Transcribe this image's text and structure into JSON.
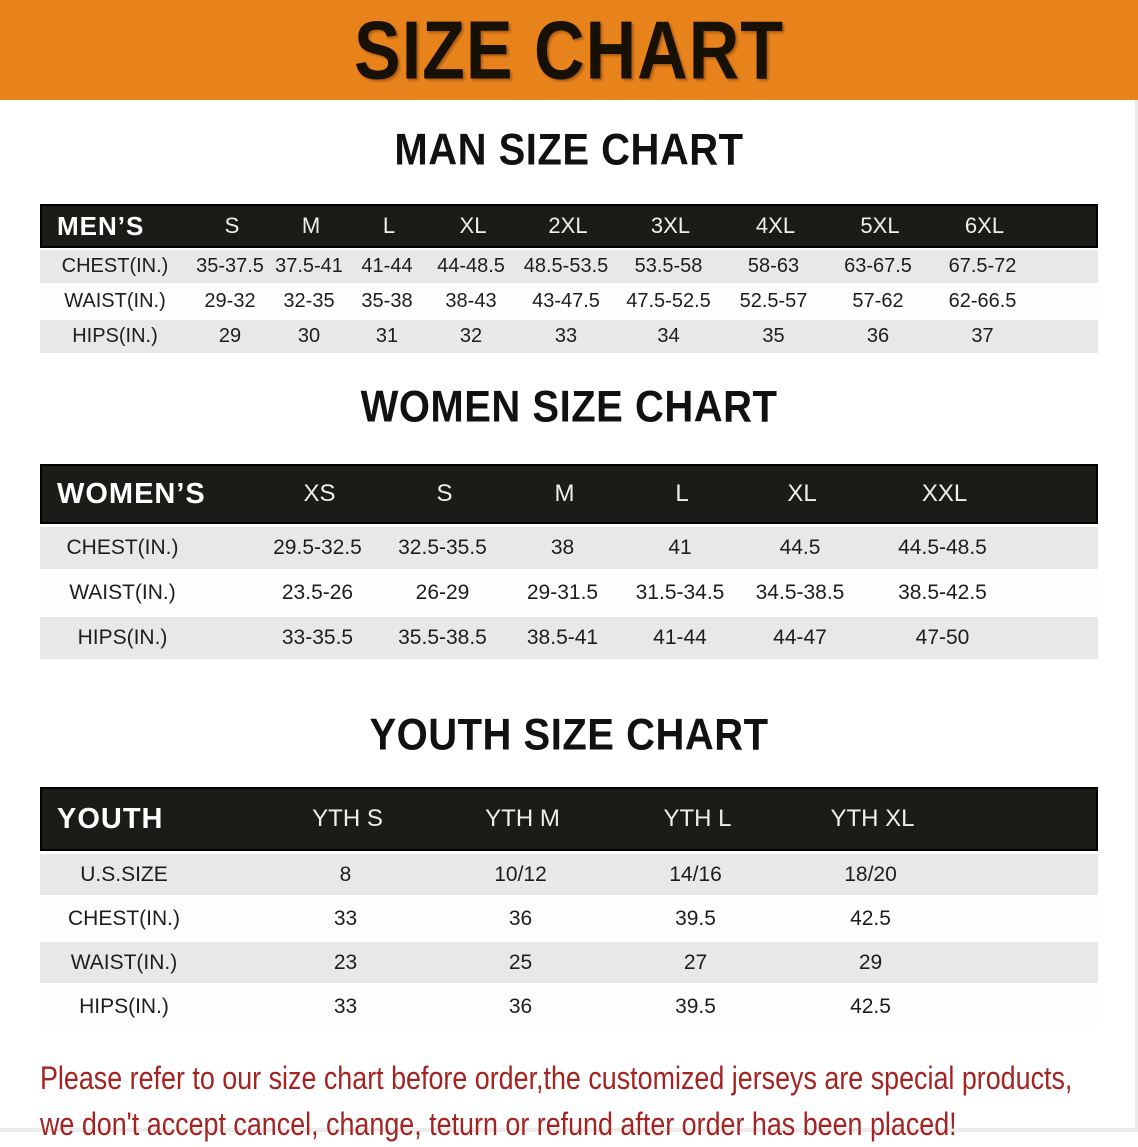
{
  "banner": {
    "title": "SIZE CHART",
    "bg_color": "#E8831C",
    "text_color": "#161005"
  },
  "tables": [
    {
      "id": "mens",
      "heading": "MAN SIZE CHART",
      "header_label": "MEN’S",
      "sizes": [
        "S",
        "M",
        "L",
        "XL",
        "2XL",
        "3XL",
        "4XL",
        "5XL",
        "6XL"
      ],
      "rows": [
        {
          "label": "CHEST(IN.)",
          "values": [
            "35-37.5",
            "37.5-41",
            "41-44",
            "44-48.5",
            "48.5-53.5",
            "53.5-58",
            "58-63",
            "63-67.5",
            "67.5-72"
          ]
        },
        {
          "label": "WAIST(IN.)",
          "values": [
            "29-32",
            "32-35",
            "35-38",
            "38-43",
            "43-47.5",
            "47.5-52.5",
            "52.5-57",
            "57-62",
            "62-66.5"
          ]
        },
        {
          "label": "HIPS(IN.)",
          "values": [
            "29",
            "30",
            "31",
            "32",
            "33",
            "34",
            "35",
            "36",
            "37"
          ]
        }
      ]
    },
    {
      "id": "womens",
      "heading": "WOMEN SIZE CHART",
      "header_label": "WOMEN’S",
      "sizes": [
        "XS",
        "S",
        "M",
        "L",
        "XL",
        "XXL"
      ],
      "rows": [
        {
          "label": "CHEST(IN.)",
          "values": [
            "29.5-32.5",
            "32.5-35.5",
            "38",
            "41",
            "44.5",
            "44.5-48.5"
          ]
        },
        {
          "label": "WAIST(IN.)",
          "values": [
            "23.5-26",
            "26-29",
            "29-31.5",
            "31.5-34.5",
            "34.5-38.5",
            "38.5-42.5"
          ]
        },
        {
          "label": "HIPS(IN.)",
          "values": [
            "33-35.5",
            "35.5-38.5",
            "38.5-41",
            "41-44",
            "44-47",
            "47-50"
          ]
        }
      ]
    },
    {
      "id": "youth",
      "heading": "YOUTH SIZE CHART",
      "header_label": "YOUTH",
      "sizes": [
        "YTH S",
        "YTH M",
        "YTH L",
        "YTH XL"
      ],
      "rows": [
        {
          "label": "U.S.SIZE",
          "values": [
            "8",
            "10/12",
            "14/16",
            "18/20"
          ]
        },
        {
          "label": "CHEST(IN.)",
          "values": [
            "33",
            "36",
            "39.5",
            "42.5"
          ]
        },
        {
          "label": "WAIST(IN.)",
          "values": [
            "23",
            "25",
            "27",
            "29"
          ]
        },
        {
          "label": "HIPS(IN.)",
          "values": [
            "33",
            "36",
            "39.5",
            "42.5"
          ]
        }
      ]
    }
  ],
  "footer": {
    "line1": "Please refer to our size chart before order,the customized jerseys are special products,",
    "line2": "we don't accept cancel, change, teturn or refund after order has been placed!",
    "text_color": "#A32422"
  },
  "colors": {
    "banner_bg": "#E8831C",
    "table_header_bg": "#1B1B18",
    "row_gray": "#E8E8E8",
    "row_white": "#FDFDFD"
  }
}
